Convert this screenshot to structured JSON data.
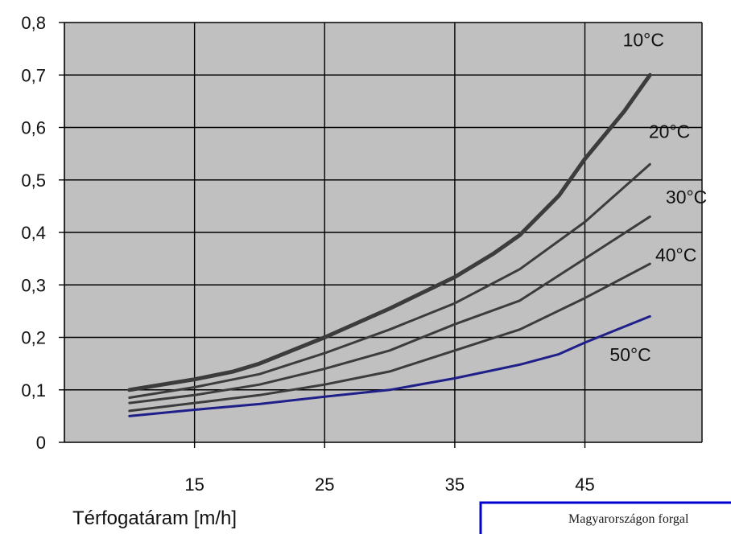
{
  "chart_data": {
    "type": "line",
    "xlabel": "Térfogatáram [m/h]",
    "ylabel": "",
    "xlim": [
      5,
      54
    ],
    "ylim": [
      0,
      0.8
    ],
    "x_ticks": [
      {
        "value": 15,
        "label": "15"
      },
      {
        "value": 25,
        "label": "25"
      },
      {
        "value": 35,
        "label": "35"
      },
      {
        "value": 45,
        "label": "45"
      }
    ],
    "x_grid": [
      15,
      25,
      35,
      45
    ],
    "y_ticks": [
      {
        "value": 0,
        "label": "0"
      },
      {
        "value": 0.1,
        "label": "0,1"
      },
      {
        "value": 0.2,
        "label": "0,2"
      },
      {
        "value": 0.3,
        "label": "0,3"
      },
      {
        "value": 0.4,
        "label": "0,4"
      },
      {
        "value": 0.5,
        "label": "0,5"
      },
      {
        "value": 0.6,
        "label": "0,6"
      },
      {
        "value": 0.7,
        "label": "0,7"
      },
      {
        "value": 0.8,
        "label": "0,8"
      }
    ],
    "grid": true,
    "plot_background": "#c0c0c0",
    "series": [
      {
        "name": "10°C",
        "color": "#3c3c3c",
        "width": 5,
        "x": [
          10,
          15,
          18,
          20,
          25,
          30,
          35,
          38,
          40,
          43,
          45,
          48,
          50
        ],
        "y": [
          0.1,
          0.12,
          0.135,
          0.15,
          0.2,
          0.255,
          0.315,
          0.36,
          0.395,
          0.47,
          0.54,
          0.63,
          0.7
        ]
      },
      {
        "name": "20°C",
        "color": "#3c3c3c",
        "width": 3,
        "x": [
          10,
          15,
          20,
          25,
          30,
          35,
          40,
          45,
          50
        ],
        "y": [
          0.085,
          0.105,
          0.13,
          0.17,
          0.215,
          0.265,
          0.33,
          0.42,
          0.53
        ]
      },
      {
        "name": "30°C",
        "color": "#3c3c3c",
        "width": 3,
        "x": [
          10,
          15,
          20,
          25,
          30,
          35,
          40,
          45,
          50
        ],
        "y": [
          0.075,
          0.09,
          0.11,
          0.14,
          0.175,
          0.225,
          0.27,
          0.35,
          0.43
        ]
      },
      {
        "name": "40°C",
        "color": "#3c3c3c",
        "width": 3,
        "x": [
          10,
          15,
          20,
          25,
          30,
          35,
          40,
          45,
          50
        ],
        "y": [
          0.06,
          0.075,
          0.09,
          0.11,
          0.135,
          0.175,
          0.215,
          0.275,
          0.34
        ]
      },
      {
        "name": "50°C",
        "color": "#1f1f8a",
        "width": 3,
        "x": [
          10,
          15,
          20,
          25,
          30,
          35,
          40,
          43,
          45,
          50
        ],
        "y": [
          0.05,
          0.062,
          0.073,
          0.087,
          0.1,
          0.122,
          0.148,
          0.168,
          0.19,
          0.24
        ]
      }
    ],
    "series_label_anchors": [
      {
        "name": "10°C",
        "x": 49.5,
        "y": 0.755
      },
      {
        "name": "20°C",
        "x": 51.5,
        "y": 0.58
      },
      {
        "name": "30°C",
        "x": 52.8,
        "y": 0.455
      },
      {
        "name": "40°C",
        "x": 52.0,
        "y": 0.345
      },
      {
        "name": "50°C",
        "x": 48.5,
        "y": 0.155
      }
    ]
  },
  "stamp": {
    "text": "Magyarországon forgal",
    "border_color": "#0000cc"
  }
}
